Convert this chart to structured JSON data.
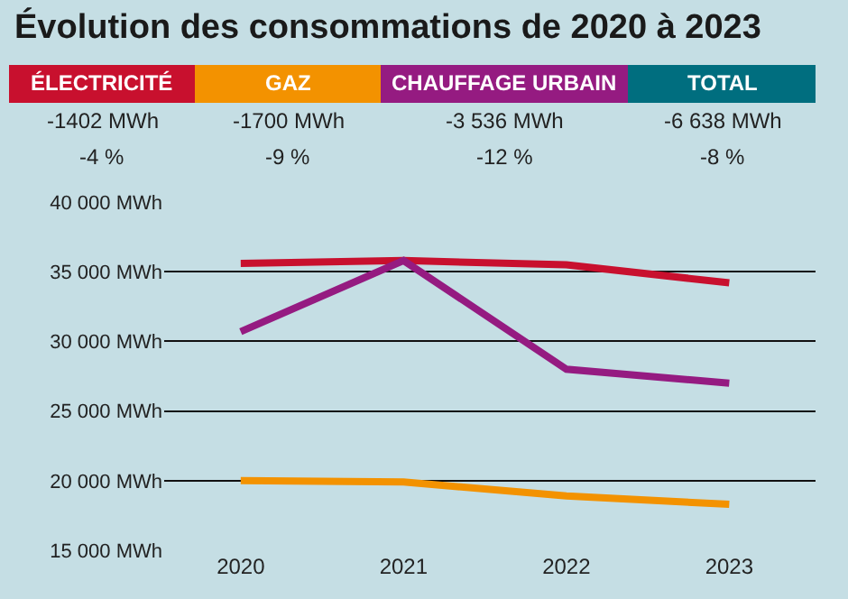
{
  "chart_data": [
    {
      "type": "other",
      "title": "Évolution des consommations de 2020 à 2023",
      "categories": [
        "ÉLECTRICITÉ",
        "GAZ",
        "CHAUFFAGE URBAIN",
        "TOTAL"
      ],
      "colors": [
        "#c8102e",
        "#f39200",
        "#951b81",
        "#006e7f"
      ],
      "value_labels": [
        "-1402 MWh",
        "-1700 MWh",
        "-3 536 MWh",
        "-6 638 MWh"
      ],
      "annotations": [
        "-4 %",
        "-9 %",
        "-12 %",
        "-8 %"
      ]
    },
    {
      "type": "line",
      "x": [
        2020,
        2021,
        2022,
        2023
      ],
      "series": [
        {
          "color": "#c8102e",
          "values": [
            35600,
            35800,
            35500,
            34200
          ]
        },
        {
          "color": "#951b81",
          "values": [
            30700,
            35800,
            28000,
            27000
          ]
        },
        {
          "color": "#f39200",
          "values": [
            20000,
            19900,
            18900,
            18300
          ]
        }
      ],
      "xlim": [
        2019.53,
        2023.53
      ],
      "xticks": [
        2020,
        2021,
        2022,
        2023
      ],
      "ylim": [
        15000,
        40000
      ],
      "yticks": [
        {
          "value": 15000,
          "label": "15 000 MWh"
        },
        {
          "value": 20000,
          "label": "20 000 MWh"
        },
        {
          "value": 25000,
          "label": "25 000 MWh"
        },
        {
          "value": 30000,
          "label": "30 000 MWh"
        },
        {
          "value": 35000,
          "label": "35 000 MWh"
        },
        {
          "value": 40000,
          "label": "40 000 MWh"
        }
      ],
      "grid": "y",
      "marker": "none",
      "line_style": "solid"
    }
  ]
}
